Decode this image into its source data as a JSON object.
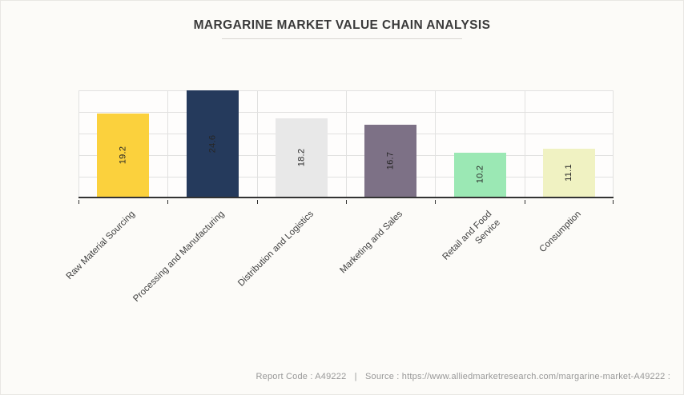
{
  "page": {
    "title": "MARGARINE MARKET VALUE CHAIN ANALYSIS",
    "footer": {
      "report_code": "Report Code : A49222",
      "separator": "|",
      "source": "Source : https://www.alliedmarketresearch.com/margarine-market-A49222 :"
    }
  },
  "chart_data": {
    "type": "bar",
    "title": "MARGARINE MARKET VALUE CHAIN ANALYSIS",
    "categories": [
      "Raw Material Sourcing",
      "Processing and Manufacturing",
      "Distribution and Logistics",
      "Marketing and Sales",
      "Retail and Food Service",
      "Consumption"
    ],
    "category_lines": [
      [
        "Raw Material Sourcing"
      ],
      [
        "Processing and Manufacturing"
      ],
      [
        "Distribution and Logistics"
      ],
      [
        "Marketing and Sales"
      ],
      [
        "Retail and Food",
        "Service"
      ],
      [
        "Consumption"
      ]
    ],
    "values": [
      19.2,
      24.6,
      18.2,
      16.7,
      10.2,
      11.1
    ],
    "value_labels": [
      "19.2",
      "24.6",
      "18.2",
      "16.7",
      "10.2",
      "11.1"
    ],
    "colors": [
      "#fbd13d",
      "#253a5c",
      "#e8e8e8",
      "#7d7186",
      "#9be8b4",
      "#f0f2c2"
    ],
    "xlabel": "",
    "ylabel": "",
    "ylim": [
      0,
      25
    ],
    "grid_step": 5,
    "grid": true,
    "legend_position": "none",
    "value_label_rotation": -90,
    "xtick_rotation": -45,
    "axis_color": "#333333",
    "gridline_color": "#e1e1e0",
    "value_label_color": "#262626",
    "xtick_label_color": "#3f3f3f"
  }
}
